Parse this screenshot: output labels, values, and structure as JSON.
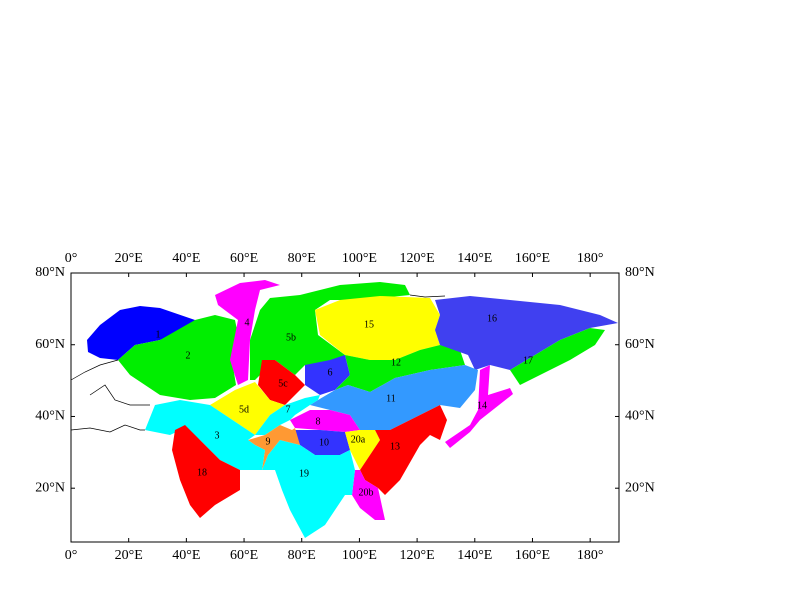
{
  "map": {
    "xlim": [
      0,
      190
    ],
    "ylim": [
      5,
      80
    ],
    "xticks": [
      {
        "value": 0,
        "label": "0°"
      },
      {
        "value": 20,
        "label": "20°E"
      },
      {
        "value": 40,
        "label": "40°E"
      },
      {
        "value": 60,
        "label": "60°E"
      },
      {
        "value": 80,
        "label": "80°E"
      },
      {
        "value": 100,
        "label": "100°E"
      },
      {
        "value": 120,
        "label": "120°E"
      },
      {
        "value": 140,
        "label": "140°E"
      },
      {
        "value": 160,
        "label": "160°E"
      },
      {
        "value": 180,
        "label": "180°"
      }
    ],
    "yticks": [
      {
        "value": 20,
        "label": "20°N"
      },
      {
        "value": 40,
        "label": "40°N"
      },
      {
        "value": 60,
        "label": "60°N"
      },
      {
        "value": 80,
        "label": "80°N"
      }
    ]
  },
  "regions": [
    "1",
    "2",
    "4",
    "5b",
    "15",
    "16",
    "17",
    "12",
    "6",
    "5c",
    "11",
    "14",
    "5d",
    "7",
    "8",
    "3",
    "9",
    "10",
    "20a",
    "13",
    "18",
    "19",
    "20b"
  ]
}
